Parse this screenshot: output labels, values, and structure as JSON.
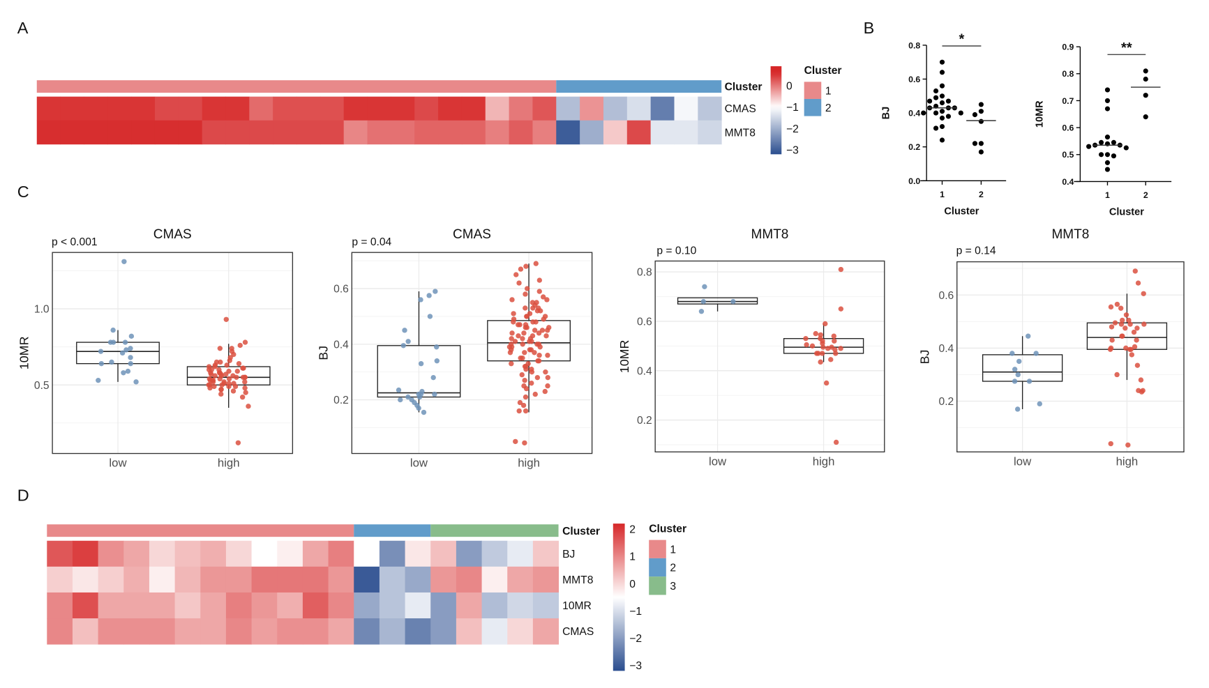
{
  "panel_labels": {
    "a": "A",
    "b": "B",
    "c": "C",
    "d": "D"
  },
  "chart_data": [
    {
      "id": "A",
      "type": "heatmap",
      "annotation_label": "Cluster",
      "rows": [
        "CMAS",
        "MMT8"
      ],
      "cluster": [
        1,
        1,
        1,
        1,
        1,
        1,
        1,
        1,
        1,
        1,
        1,
        1,
        1,
        1,
        1,
        1,
        1,
        1,
        1,
        1,
        1,
        1,
        2,
        2,
        2,
        2,
        2,
        2,
        2
      ],
      "values": {
        "CMAS": [
          0.5,
          0.5,
          0.5,
          0.5,
          0.5,
          0.35,
          0.35,
          0.5,
          0.5,
          0.1,
          0.3,
          0.3,
          0.3,
          0.5,
          0.5,
          0.5,
          0.35,
          0.5,
          0.5,
          -0.45,
          0.0,
          0.25,
          -1.8,
          -0.2,
          -1.8,
          -1.4,
          -2.6,
          -1.1,
          -1.7
        ],
        "MMT8": [
          0.55,
          0.55,
          0.55,
          0.55,
          0.55,
          0.55,
          0.55,
          0.35,
          0.35,
          0.35,
          0.35,
          0.35,
          0.35,
          -0.1,
          0.05,
          0.05,
          0.15,
          0.15,
          0.15,
          -0.05,
          0.2,
          -0.05,
          -3.0,
          -2.0,
          -0.6,
          0.35,
          -1.3,
          -1.3,
          -1.5
        ]
      },
      "color_stops": [
        [
          0.6,
          "#D62728"
        ],
        [
          -1.0,
          "#FFFFFF"
        ],
        [
          -3.2,
          "#2A4D8F"
        ]
      ],
      "colorbar_range": [
        -3.2,
        0.9
      ],
      "colorbar_ticks": [
        {
          "v": 0,
          "label": "0"
        },
        {
          "v": -1,
          "label": "−1"
        },
        {
          "v": -2,
          "label": "−2"
        },
        {
          "v": -3,
          "label": "−3"
        }
      ],
      "legend_title": "Cluster",
      "cluster_levels": [
        "1",
        "2"
      ],
      "cluster_colors": {
        "1": "#E8898A",
        "2": "#619CCA"
      }
    },
    {
      "id": "B1",
      "type": "scatter",
      "xlabel": "Cluster",
      "ylabel": "BJ",
      "categories": [
        "1",
        "2"
      ],
      "ylim": [
        0.0,
        0.8
      ],
      "yticks": [
        {
          "v": 0.0,
          "label": "0.0"
        },
        {
          "v": 0.2,
          "label": "0.2"
        },
        {
          "v": 0.4,
          "label": "0.4"
        },
        {
          "v": 0.6,
          "label": "0.6"
        },
        {
          "v": 0.8,
          "label": "0.8"
        }
      ],
      "significance": "*",
      "groups": [
        {
          "category": "1",
          "median": 0.43,
          "values": [
            0.7,
            0.64,
            0.56,
            0.53,
            0.5,
            0.49,
            0.47,
            0.47,
            0.46,
            0.44,
            0.43,
            0.43,
            0.43,
            0.41,
            0.4,
            0.4,
            0.4,
            0.38,
            0.37,
            0.32,
            0.31,
            0.24
          ]
        },
        {
          "category": "2",
          "median": 0.355,
          "values": [
            0.45,
            0.41,
            0.39,
            0.35,
            0.22,
            0.22,
            0.17
          ]
        }
      ]
    },
    {
      "id": "B2",
      "type": "scatter",
      "xlabel": "Cluster",
      "ylabel": "10MR",
      "categories": [
        "1",
        "2"
      ],
      "ylim": [
        0.4,
        0.9
      ],
      "yticks": [
        {
          "v": 0.4,
          "label": "0.4"
        },
        {
          "v": 0.5,
          "label": "0.5"
        },
        {
          "v": 0.6,
          "label": "0.6"
        },
        {
          "v": 0.7,
          "label": "0.7"
        },
        {
          "v": 0.8,
          "label": "0.8"
        },
        {
          "v": 0.9,
          "label": "0.9"
        }
      ],
      "significance": "**",
      "groups": [
        {
          "category": "1",
          "median": 0.535,
          "values": [
            0.74,
            0.7,
            0.67,
            0.565,
            0.545,
            0.545,
            0.54,
            0.535,
            0.535,
            0.53,
            0.525,
            0.5,
            0.5,
            0.495,
            0.47,
            0.445
          ]
        },
        {
          "category": "2",
          "median": 0.75,
          "values": [
            0.81,
            0.78,
            0.72,
            0.64
          ]
        }
      ]
    },
    {
      "id": "C1",
      "type": "box",
      "title": "CMAS",
      "p_label": "p < 0.001",
      "ylabel": "10MR",
      "categories": [
        "low",
        "high"
      ],
      "ylim": [
        0.05,
        1.37
      ],
      "yticks": [
        {
          "v": 0.5,
          "label": "0.5"
        },
        {
          "v": 1.0,
          "label": "1.0"
        }
      ],
      "minor_grid": [
        0.25,
        0.75,
        1.25
      ],
      "groups": [
        {
          "category": "low",
          "q1": 0.64,
          "median": 0.72,
          "q3": 0.78,
          "whisker_low": 0.52,
          "whisker_high": 0.86,
          "values": [
            1.31,
            0.86,
            0.82,
            0.78,
            0.78,
            0.78,
            0.74,
            0.73,
            0.72,
            0.71,
            0.68,
            0.65,
            0.64,
            0.64,
            0.59,
            0.58,
            0.53,
            0.52
          ]
        },
        {
          "category": "high",
          "q1": 0.5,
          "median": 0.55,
          "q3": 0.62,
          "whisker_low": 0.35,
          "whisker_high": 0.77,
          "values": [
            0.93,
            0.78,
            0.76,
            0.74,
            0.74,
            0.72,
            0.7,
            0.68,
            0.66,
            0.65,
            0.65,
            0.64,
            0.63,
            0.63,
            0.62,
            0.62,
            0.61,
            0.61,
            0.6,
            0.6,
            0.6,
            0.59,
            0.59,
            0.58,
            0.58,
            0.58,
            0.57,
            0.57,
            0.57,
            0.56,
            0.56,
            0.56,
            0.55,
            0.55,
            0.55,
            0.55,
            0.54,
            0.54,
            0.54,
            0.53,
            0.53,
            0.53,
            0.52,
            0.52,
            0.52,
            0.51,
            0.51,
            0.51,
            0.5,
            0.5,
            0.5,
            0.49,
            0.49,
            0.49,
            0.48,
            0.48,
            0.47,
            0.47,
            0.46,
            0.45,
            0.44,
            0.42,
            0.36,
            0.12
          ]
        }
      ]
    },
    {
      "id": "C2",
      "type": "box",
      "title": "CMAS",
      "p_label": "p = 0.04",
      "ylabel": "BJ",
      "categories": [
        "low",
        "high"
      ],
      "ylim": [
        0.007,
        0.73
      ],
      "yticks": [
        {
          "v": 0.2,
          "label": "0.2"
        },
        {
          "v": 0.4,
          "label": "0.4"
        },
        {
          "v": 0.6,
          "label": "0.6"
        }
      ],
      "minor_grid": [
        0.1,
        0.3,
        0.5,
        0.7
      ],
      "groups": [
        {
          "category": "low",
          "q1": 0.21,
          "median": 0.225,
          "q3": 0.395,
          "whisker_low": 0.155,
          "whisker_high": 0.59,
          "values": [
            0.59,
            0.575,
            0.56,
            0.5,
            0.45,
            0.41,
            0.395,
            0.39,
            0.34,
            0.33,
            0.28,
            0.235,
            0.23,
            0.22,
            0.22,
            0.22,
            0.21,
            0.21,
            0.2,
            0.2,
            0.19,
            0.18,
            0.17,
            0.155
          ]
        },
        {
          "category": "high",
          "q1": 0.34,
          "median": 0.405,
          "q3": 0.485,
          "whisker_low": 0.155,
          "whisker_high": 0.69,
          "values": [
            0.69,
            0.68,
            0.67,
            0.65,
            0.63,
            0.62,
            0.6,
            0.59,
            0.58,
            0.57,
            0.56,
            0.56,
            0.55,
            0.55,
            0.54,
            0.53,
            0.53,
            0.53,
            0.52,
            0.52,
            0.51,
            0.51,
            0.5,
            0.5,
            0.5,
            0.49,
            0.49,
            0.48,
            0.48,
            0.48,
            0.47,
            0.47,
            0.47,
            0.46,
            0.46,
            0.46,
            0.45,
            0.45,
            0.45,
            0.44,
            0.44,
            0.44,
            0.43,
            0.43,
            0.43,
            0.42,
            0.42,
            0.42,
            0.41,
            0.41,
            0.41,
            0.4,
            0.4,
            0.4,
            0.4,
            0.39,
            0.39,
            0.39,
            0.38,
            0.38,
            0.38,
            0.37,
            0.37,
            0.37,
            0.36,
            0.36,
            0.35,
            0.35,
            0.34,
            0.34,
            0.33,
            0.33,
            0.32,
            0.32,
            0.31,
            0.31,
            0.3,
            0.3,
            0.29,
            0.28,
            0.28,
            0.27,
            0.26,
            0.25,
            0.25,
            0.24,
            0.23,
            0.22,
            0.21,
            0.19,
            0.18,
            0.16,
            0.16,
            0.05,
            0.045
          ]
        }
      ]
    },
    {
      "id": "C3",
      "type": "box",
      "title": "MMT8",
      "p_label": "p = 0.10",
      "ylabel": "10MR",
      "categories": [
        "low",
        "high"
      ],
      "ylim": [
        0.071,
        0.844
      ],
      "yticks": [
        {
          "v": 0.2,
          "label": "0.2"
        },
        {
          "v": 0.4,
          "label": "0.4"
        },
        {
          "v": 0.6,
          "label": "0.6"
        },
        {
          "v": 0.8,
          "label": "0.8"
        }
      ],
      "minor_grid": [
        0.1,
        0.3,
        0.5,
        0.7
      ],
      "groups": [
        {
          "category": "low",
          "q1": 0.67,
          "median": 0.68,
          "q3": 0.695,
          "whisker_low": 0.64,
          "whisker_high": 0.695,
          "values": [
            0.74,
            0.68,
            0.68,
            0.64
          ]
        },
        {
          "category": "high",
          "q1": 0.47,
          "median": 0.495,
          "q3": 0.53,
          "whisker_low": 0.435,
          "whisker_high": 0.59,
          "values": [
            0.81,
            0.65,
            0.59,
            0.55,
            0.545,
            0.54,
            0.53,
            0.53,
            0.52,
            0.52,
            0.51,
            0.505,
            0.5,
            0.495,
            0.495,
            0.49,
            0.49,
            0.485,
            0.47,
            0.47,
            0.47,
            0.47,
            0.445,
            0.435,
            0.35,
            0.11
          ]
        }
      ]
    },
    {
      "id": "C4",
      "type": "box",
      "title": "MMT8",
      "p_label": "p = 0.14",
      "ylabel": "BJ",
      "categories": [
        "low",
        "high"
      ],
      "ylim": [
        0.009,
        0.725
      ],
      "yticks": [
        {
          "v": 0.2,
          "label": "0.2"
        },
        {
          "v": 0.4,
          "label": "0.4"
        },
        {
          "v": 0.6,
          "label": "0.6"
        }
      ],
      "minor_grid": [
        0.1,
        0.3,
        0.5,
        0.7
      ],
      "groups": [
        {
          "category": "low",
          "q1": 0.275,
          "median": 0.31,
          "q3": 0.375,
          "whisker_low": 0.17,
          "whisker_high": 0.445,
          "values": [
            0.445,
            0.38,
            0.38,
            0.35,
            0.32,
            0.3,
            0.275,
            0.275,
            0.19,
            0.17
          ]
        },
        {
          "category": "high",
          "q1": 0.395,
          "median": 0.44,
          "q3": 0.495,
          "whisker_low": 0.28,
          "whisker_high": 0.605,
          "values": [
            0.69,
            0.645,
            0.605,
            0.565,
            0.555,
            0.55,
            0.525,
            0.505,
            0.505,
            0.495,
            0.49,
            0.49,
            0.49,
            0.48,
            0.475,
            0.475,
            0.46,
            0.445,
            0.445,
            0.43,
            0.43,
            0.405,
            0.4,
            0.4,
            0.395,
            0.395,
            0.395,
            0.375,
            0.335,
            0.3,
            0.28,
            0.24,
            0.235,
            0.24,
            0.04,
            0.035
          ]
        }
      ]
    },
    {
      "id": "D",
      "type": "heatmap",
      "annotation_label": "Cluster",
      "rows": [
        "BJ",
        "MMT8",
        "10MR",
        "CMAS"
      ],
      "cluster": [
        1,
        1,
        1,
        1,
        1,
        1,
        1,
        1,
        1,
        1,
        1,
        1,
        2,
        2,
        2,
        3,
        3,
        3,
        3,
        3
      ],
      "values": {
        "BJ": [
          1.6,
          1.9,
          0.9,
          0.6,
          0.0,
          0.3,
          0.5,
          0.0,
          -0.5,
          -0.3,
          0.6,
          1.1,
          -0.5,
          -2.2,
          -0.2,
          0.3,
          -2.0,
          -1.3,
          -0.8,
          0.2
        ],
        "MMT8": [
          0.1,
          -0.2,
          0.1,
          0.5,
          -0.3,
          0.4,
          0.8,
          0.8,
          1.2,
          1.2,
          1.2,
          0.8,
          -3.0,
          -1.4,
          -1.8,
          0.8,
          1.0,
          -0.3,
          0.6,
          0.8
        ],
        "10MR": [
          1.0,
          1.7,
          0.6,
          0.6,
          0.6,
          0.2,
          0.6,
          1.1,
          0.8,
          0.5,
          1.5,
          1.0,
          -1.8,
          -1.4,
          -0.8,
          -2.0,
          0.6,
          -1.5,
          -1.1,
          -1.3
        ],
        "CMAS": [
          1.0,
          0.3,
          0.9,
          0.9,
          0.9,
          0.6,
          0.6,
          1.0,
          0.7,
          0.9,
          0.9,
          0.6,
          -2.3,
          -1.6,
          -2.4,
          -2.0,
          0.3,
          -0.8,
          0.0,
          0.6
        ]
      },
      "color_stops": [
        [
          2.2,
          "#D62728"
        ],
        [
          -0.5,
          "#FFFFFF"
        ],
        [
          -3.2,
          "#2A4D8F"
        ]
      ],
      "colorbar_range": [
        -3.2,
        2.2
      ],
      "colorbar_ticks": [
        {
          "v": 2,
          "label": "2"
        },
        {
          "v": 1,
          "label": "1"
        },
        {
          "v": 0,
          "label": "0"
        },
        {
          "v": -1,
          "label": "−1"
        },
        {
          "v": -2,
          "label": "−2"
        },
        {
          "v": -3,
          "label": "−3"
        }
      ],
      "legend_title": "Cluster",
      "cluster_levels": [
        "1",
        "2",
        "3"
      ],
      "cluster_colors": {
        "1": "#E8898A",
        "2": "#619CCA",
        "3": "#88BC8B"
      }
    }
  ],
  "colors": {
    "low_points": "#6F93B8",
    "high_points": "#DB5040",
    "dots": "#000000"
  }
}
